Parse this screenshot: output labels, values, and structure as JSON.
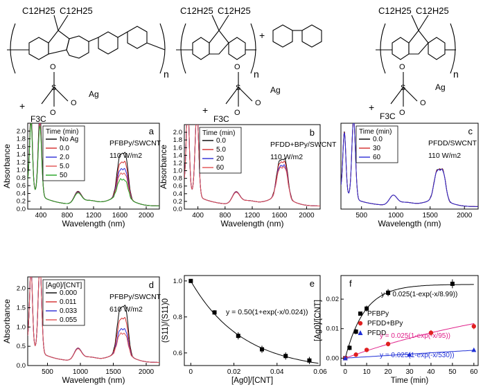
{
  "structures": {
    "left": {
      "alkyl1": "C12H25",
      "alkyl2": "C12H25",
      "repeat": "n",
      "plus": "+",
      "f3c": "F3C",
      "s": "S",
      "o": "O",
      "ag": "Ag"
    },
    "middle": {
      "alkyl1": "C12H25",
      "alkyl2": "C12H25",
      "repeat": "n",
      "plus_bpy": "+",
      "plus": "+",
      "f3c": "F3C",
      "s": "S",
      "o": "O",
      "ag": "Ag"
    },
    "right": {
      "alkyl1": "C12H25",
      "alkyl2": "C12H25",
      "repeat": "n",
      "plus": "+",
      "f3c": "F3C",
      "s": "S",
      "o": "O",
      "ag": "Ag"
    }
  },
  "chart_data": [
    {
      "id": "a",
      "type": "line",
      "panel_letter": "a",
      "title": "PFBPy/SWCNT",
      "subtitle": "110 W/m2",
      "xlabel": "Wavelength (nm)",
      "ylabel": "Absorbance",
      "xlim": [
        200,
        2200
      ],
      "ylim": [
        0,
        2.2
      ],
      "xticks": [
        400,
        800,
        1200,
        1600,
        2000
      ],
      "yticks": [
        0.0,
        0.2,
        0.4,
        0.6,
        0.8,
        1.0,
        1.2,
        1.4,
        1.6,
        1.8,
        2.0
      ],
      "legend_title": "Time (min)",
      "series": [
        {
          "name": "No Ag",
          "color": "#000000",
          "peak380": 2.12,
          "peak250": 1.9,
          "s2": 0.3,
          "s11": 1.0,
          "s12": 0.98,
          "scale": 1.0
        },
        {
          "name": "0.0",
          "color": "#d22a2a",
          "peak380": 1.97,
          "peak250": 1.82,
          "s2": 0.29,
          "s11": 0.8,
          "s12": 0.78,
          "scale": 1.0
        },
        {
          "name": "2.0",
          "color": "#2b2bd6",
          "peak380": 1.9,
          "peak250": 1.78,
          "s2": 0.28,
          "s11": 0.65,
          "s12": 0.62,
          "scale": 1.0
        },
        {
          "name": "5.0",
          "color": "#e05050",
          "peak380": 1.85,
          "peak250": 1.74,
          "s2": 0.27,
          "s11": 0.55,
          "s12": 0.52,
          "scale": 1.0
        },
        {
          "name": "50",
          "color": "#1fa21f",
          "peak380": 1.78,
          "peak250": 1.7,
          "s2": 0.26,
          "s11": 0.42,
          "s12": 0.38,
          "scale": 1.0
        }
      ]
    },
    {
      "id": "b",
      "type": "line",
      "panel_letter": "b",
      "title": "PFDD+BPy/SWCNT",
      "subtitle": "110 W/m2",
      "xlabel": "Wavelength (nm)",
      "ylabel": "Absorbance",
      "xlim": [
        200,
        2200
      ],
      "ylim": [
        0,
        2.2
      ],
      "xticks": [
        400,
        800,
        1200,
        1600,
        2000
      ],
      "yticks": [
        0.0,
        0.2,
        0.4,
        0.6,
        0.8,
        1.0,
        1.2,
        1.4,
        1.6,
        1.8,
        2.0
      ],
      "legend_title": "Time (min)",
      "series": [
        {
          "name": "0.0",
          "color": "#000000",
          "peak380": 2.2,
          "peak250": 2.2,
          "s2": 0.3,
          "s11": 0.88,
          "s12": 0.86,
          "scale": 1.0
        },
        {
          "name": "5.0",
          "color": "#d22a2a",
          "peak380": 2.2,
          "peak250": 2.2,
          "s2": 0.3,
          "s11": 0.82,
          "s12": 0.8,
          "scale": 1.0
        },
        {
          "name": "20",
          "color": "#2b2bd6",
          "peak380": 2.2,
          "peak250": 2.2,
          "s2": 0.29,
          "s11": 0.74,
          "s12": 0.72,
          "scale": 1.0
        },
        {
          "name": "60",
          "color": "#e05050",
          "peak380": 2.2,
          "peak250": 2.2,
          "s2": 0.28,
          "s11": 0.7,
          "s12": 0.68,
          "scale": 1.0
        }
      ]
    },
    {
      "id": "c",
      "type": "line",
      "panel_letter": "c",
      "title": "PFDD/SWCNT",
      "subtitle": "110 W/m2",
      "xlabel": "Wavelength (nm)",
      "ylabel": "",
      "xlim": [
        200,
        2200
      ],
      "ylim": [
        0,
        2.8
      ],
      "xticks": [
        500,
        1000,
        1500,
        2000
      ],
      "yticks": [],
      "legend_title": "Time (min)",
      "series": [
        {
          "name": "0.0",
          "color": "#000000",
          "peak380": 2.6,
          "peak250": 2.0,
          "s2": 0.3,
          "s11": 0.9,
          "s12": 0.86,
          "scale": 1.0
        },
        {
          "name": "30",
          "color": "#d22a2a",
          "peak380": 2.58,
          "peak250": 1.98,
          "s2": 0.3,
          "s11": 0.89,
          "s12": 0.85,
          "scale": 1.0
        },
        {
          "name": "60",
          "color": "#2b2bd6",
          "peak380": 2.56,
          "peak250": 1.96,
          "s2": 0.3,
          "s11": 0.88,
          "s12": 0.84,
          "scale": 1.0
        }
      ]
    },
    {
      "id": "d",
      "type": "line",
      "panel_letter": "d",
      "title": "PFBPy/SWCNT",
      "subtitle": "610 W/m2",
      "xlabel": "Wavelength (nm)",
      "ylabel": "Absorbance",
      "xlim": [
        200,
        2200
      ],
      "ylim": [
        0,
        2.3
      ],
      "xticks": [
        500,
        1000,
        1500,
        2000
      ],
      "yticks": [
        0.0,
        0.5,
        1.0,
        1.5,
        2.0
      ],
      "legend_title": "[Ag0]/[CNT]",
      "series": [
        {
          "name": "0.000",
          "color": "#000000",
          "peak380": 2.3,
          "peak250": 2.0,
          "s2": 0.3,
          "s11": 1.08,
          "s12": 1.08,
          "scale": 1.0
        },
        {
          "name": "0.011",
          "color": "#d22a2a",
          "peak380": 2.3,
          "peak250": 1.98,
          "s2": 0.3,
          "s11": 0.82,
          "s12": 0.8,
          "scale": 1.0
        },
        {
          "name": "0.033",
          "color": "#2b2bd6",
          "peak380": 2.3,
          "peak250": 1.96,
          "s2": 0.29,
          "s11": 0.58,
          "s12": 0.55,
          "scale": 1.0
        },
        {
          "name": "0.055",
          "color": "#e05050",
          "peak380": 2.3,
          "peak250": 1.95,
          "s2": 0.28,
          "s11": 0.48,
          "s12": 0.45,
          "scale": 1.0
        }
      ]
    },
    {
      "id": "e",
      "type": "scatter",
      "panel_letter": "e",
      "xlabel": "[Ag0]/[CNT]",
      "ylabel": "(S11)/(S11)0",
      "xlim": [
        -0.003,
        0.06
      ],
      "ylim": [
        0.53,
        1.03
      ],
      "xticks": [
        0.0,
        0.02,
        0.04,
        0.06
      ],
      "yticks": [
        0.6,
        0.8,
        1.0
      ],
      "x": [
        0.0,
        0.011,
        0.022,
        0.033,
        0.044,
        0.055
      ],
      "y": [
        1.0,
        0.825,
        0.695,
        0.62,
        0.583,
        0.558
      ],
      "err": [
        0.0,
        0.012,
        0.02,
        0.02,
        0.02,
        0.02
      ],
      "fit_label": "y = 0.50(1+exp(-x/0.024))",
      "fit": {
        "a": 0.5,
        "tau": 0.024
      }
    },
    {
      "id": "f",
      "type": "scatter",
      "panel_letter": "f",
      "xlabel": "Time (min)",
      "ylabel": "[Ag0]/[CNT]",
      "xlim": [
        -2,
        62
      ],
      "ylim": [
        -0.0025,
        0.028
      ],
      "xticks": [
        0,
        10,
        20,
        30,
        40,
        50,
        60
      ],
      "yticks": [
        0.0,
        0.01,
        0.02
      ],
      "series": [
        {
          "name": "PFBPy",
          "color": "#000000",
          "marker": "square",
          "x": [
            0,
            2,
            5,
            10,
            20,
            50
          ],
          "y": [
            0.0,
            0.0035,
            0.009,
            0.0168,
            0.0222,
            0.0252
          ],
          "err": [
            0.0005,
            0.0008,
            0.0009,
            0.001,
            0.0012,
            0.0015
          ],
          "fit_label": "y = 0.025(1-exp(-x/8.99))",
          "fit_color": "#000000",
          "a": 0.025,
          "tau": 8.99
        },
        {
          "name": "PFDD+BPy",
          "color": "#e02020",
          "marker": "circle",
          "x": [
            0,
            5,
            10,
            20,
            40,
            60
          ],
          "y": [
            0.0,
            0.0012,
            0.0028,
            0.0048,
            0.0086,
            0.0108
          ],
          "err": [
            0.0004,
            0.0006,
            0.0007,
            0.0008,
            0.0009,
            0.001
          ],
          "fit_label": "y = 0.025(1-exp(-x/95))",
          "fit_color": "#e0208a",
          "a": 0.025,
          "tau": 95
        },
        {
          "name": "PFDD",
          "color": "#1f2fd6",
          "marker": "triangle",
          "x": [
            0,
            30,
            60
          ],
          "y": [
            0.0,
            0.0012,
            0.0028
          ],
          "err": [
            0.0003,
            0.0003,
            0.0003
          ],
          "fit_label": "y = 0.025(1-exp(-x/530))",
          "fit_color": "#1f2fd6",
          "a": 0.025,
          "tau": 530
        }
      ]
    }
  ]
}
